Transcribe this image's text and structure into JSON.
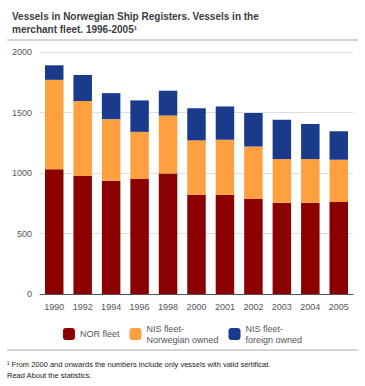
{
  "chart_data": {
    "type": "bar",
    "title": "Vessels in Norwegian Ship Registers. Vessels in the\nmerchant fleet. 1996-2005¹",
    "categories": [
      "1990",
      "1992",
      "1994",
      "1996",
      "1998",
      "2000",
      "2001",
      "2002",
      "2003",
      "2004",
      "2005"
    ],
    "series": [
      {
        "name": "NOR fleet",
        "color": "#8B0000",
        "values": [
          1030,
          975,
          935,
          950,
          995,
          820,
          820,
          785,
          755,
          755,
          760
        ]
      },
      {
        "name": "NIS fleet-\nNorwegian owned",
        "color": "#FFA040",
        "values": [
          740,
          620,
          510,
          390,
          480,
          450,
          455,
          435,
          360,
          360,
          350
        ]
      },
      {
        "name": "NIS fleet-\nforeign owned",
        "color": "#1A3A8C",
        "values": [
          120,
          215,
          215,
          260,
          205,
          265,
          275,
          275,
          325,
          290,
          235
        ]
      }
    ],
    "stacked": true,
    "ylim": [
      0,
      2000
    ],
    "yticks": [
      0,
      500,
      1000,
      1500,
      2000
    ],
    "grid": true,
    "legend": "bottom",
    "annotations": [
      "¹ From 2000 and onwards the numbers include only vessels with valid sertificat.\nRead About the statistics."
    ]
  }
}
